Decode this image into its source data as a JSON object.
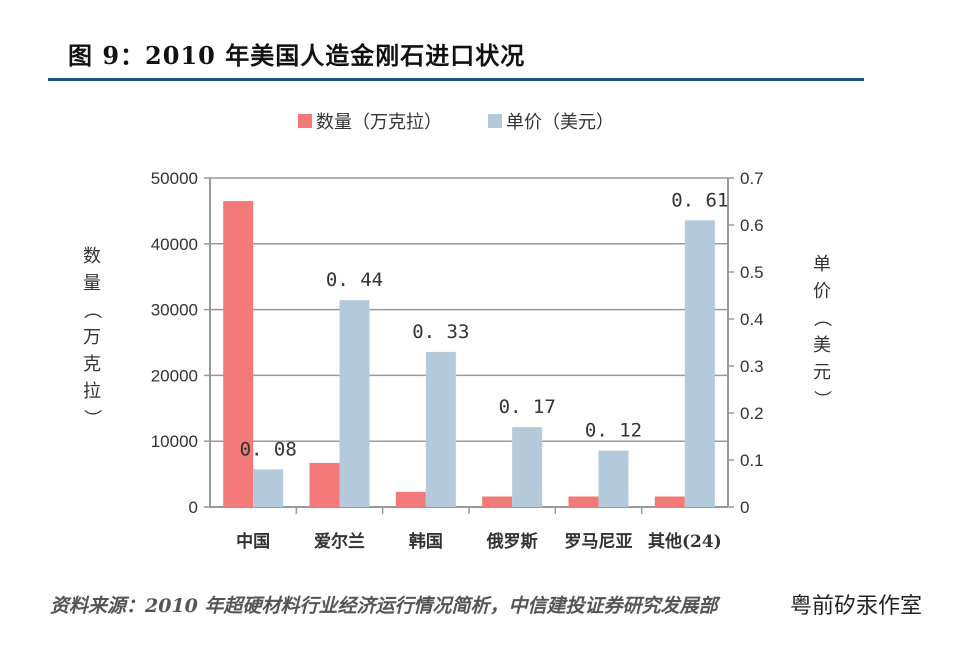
{
  "title": "图 9：2010 年美国人造金刚石进口状况",
  "source": "资料来源：2010 年超硬材料行业经济运行情况简析，中信建投证券研究发展部",
  "watermark": "粤前矽汞作室",
  "chart_data": {
    "type": "bar",
    "categories": [
      "中国",
      "爱尔兰",
      "韩国",
      "俄罗斯",
      "罗马尼亚",
      "其他(24)"
    ],
    "series": [
      {
        "name": "数量（万克拉）",
        "axis": "left",
        "color": "#f47a7a",
        "values": [
          46500,
          6700,
          2300,
          1600,
          1600,
          1600
        ]
      },
      {
        "name": "单价（美元）",
        "axis": "right",
        "color": "#b4cadb",
        "values": [
          0.08,
          0.44,
          0.33,
          0.17,
          0.12,
          0.61
        ],
        "data_labels": [
          "0.08",
          "0.44",
          "0.33",
          "0.17",
          "0.12",
          "0.61"
        ]
      }
    ],
    "ylabel": "数量（万克拉）",
    "y2label": "单价（美元）",
    "ylim": [
      0,
      50000
    ],
    "y2lim": [
      0,
      0.7
    ],
    "yticks": [
      "0",
      "10000",
      "20000",
      "30000",
      "40000",
      "50000"
    ],
    "y2ticks": [
      "0",
      "0.1",
      "0.2",
      "0.3",
      "0.4",
      "0.5",
      "0.6",
      "0.7"
    ],
    "grid": true,
    "legend": "top-center"
  }
}
